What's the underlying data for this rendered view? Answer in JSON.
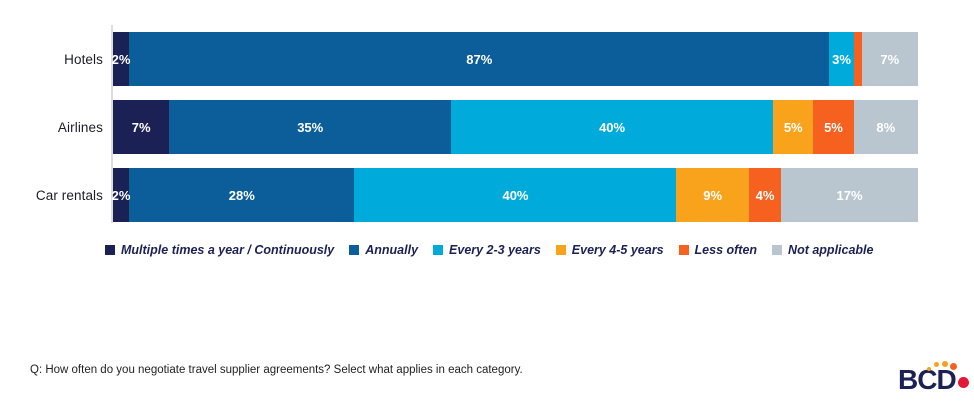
{
  "chart_data": {
    "type": "bar",
    "orientation": "horizontal-stacked",
    "title": "",
    "categories": [
      "Hotels",
      "Airlines",
      "Car rentals"
    ],
    "series": [
      {
        "name": "Multiple times a year / Continuously",
        "color": "#1b2155",
        "values": [
          2,
          7,
          2
        ]
      },
      {
        "name": "Annually",
        "color": "#0c5e9b",
        "values": [
          87,
          35,
          28
        ]
      },
      {
        "name": "Every 2-3 years",
        "color": "#00abdc",
        "values": [
          3,
          40,
          40
        ]
      },
      {
        "name": "Every 4-5 years",
        "color": "#f9a21b",
        "values": [
          0,
          5,
          9
        ]
      },
      {
        "name": "Less often",
        "color": "#f6611f",
        "values": [
          1,
          5,
          4
        ]
      },
      {
        "name": "Not applicable",
        "color": "#b9c6d0",
        "values": [
          7,
          8,
          17
        ]
      }
    ],
    "value_unit": "%",
    "xlim": [
      0,
      100
    ],
    "min_label_value": 2,
    "grid": false,
    "legend_position": "bottom"
  },
  "footnote": "Q: How often do you negotiate travel supplier agreements? Select what applies in each category.",
  "logo": {
    "text": "BCD"
  }
}
